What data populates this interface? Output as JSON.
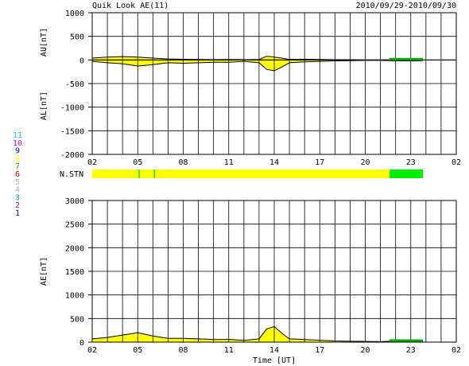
{
  "title_left": "Quik Look AE(11)",
  "title_right": "2010/09/29-2010/09/30",
  "xlabel": "Time [UT]",
  "x_ticks": [
    "02",
    "05",
    "08",
    "11",
    "14",
    "17",
    "20",
    "23",
    "02"
  ],
  "station_label": "N.STN",
  "station_numbers": [
    {
      "label": "11",
      "color": "#00d0d0"
    },
    {
      "label": "10",
      "color": "#e000e0"
    },
    {
      "label": "9",
      "color": "#0000c0"
    },
    {
      "label": "8",
      "color": "#ffff00"
    },
    {
      "label": "7",
      "color": "#00c000"
    },
    {
      "label": "6",
      "color": "#e00000"
    },
    {
      "label": "5",
      "color": "#b0b0b0"
    },
    {
      "label": "4",
      "color": "#b0b0b0"
    },
    {
      "label": "3",
      "color": "#00a0a0"
    },
    {
      "label": "2",
      "color": "#a000a0"
    },
    {
      "label": "1",
      "color": "#0000c0"
    }
  ],
  "colors": {
    "fill": "#ffff00",
    "line": "#000000",
    "green": "#00ee00",
    "ae_green": "#00aa00"
  },
  "chart_data": [
    {
      "type": "area",
      "name": "AU/AL",
      "ylabel_top": "AU[nT]",
      "ylabel_bottom": "AL[nT]",
      "ylim": [
        -2000,
        1000
      ],
      "y_ticks": [
        "1000",
        "500",
        "0",
        "-500",
        "-1000",
        "-1500",
        "-2000"
      ],
      "x_hours": [
        2,
        3,
        4,
        5,
        6,
        7,
        8,
        9,
        10,
        11,
        12,
        13,
        13.5,
        14,
        14.5,
        15,
        16,
        17,
        18,
        19,
        20,
        21,
        22,
        23,
        23.8
      ],
      "au": [
        40,
        60,
        70,
        60,
        40,
        20,
        15,
        10,
        5,
        10,
        5,
        10,
        80,
        60,
        40,
        10,
        15,
        10,
        5,
        5,
        0,
        0,
        5,
        5,
        5
      ],
      "al": [
        -30,
        -60,
        -80,
        -130,
        -100,
        -60,
        -70,
        -60,
        -50,
        -50,
        -30,
        -60,
        -200,
        -230,
        -150,
        -60,
        -40,
        -30,
        -20,
        -15,
        -10,
        -10,
        -20,
        -20,
        -15
      ]
    },
    {
      "type": "area",
      "name": "AE",
      "ylabel": "AE[nT]",
      "ylim": [
        0,
        3000
      ],
      "y_ticks": [
        "3000",
        "2500",
        "2000",
        "1500",
        "1000",
        "500",
        "0"
      ],
      "x_hours": [
        2,
        3,
        4,
        5,
        6,
        7,
        8,
        9,
        10,
        11,
        12,
        13,
        13.5,
        14,
        14.5,
        15,
        16,
        17,
        18,
        19,
        20,
        21,
        22,
        23,
        23.8
      ],
      "ae": [
        70,
        100,
        150,
        200,
        130,
        80,
        80,
        70,
        55,
        60,
        35,
        70,
        280,
        330,
        190,
        70,
        55,
        40,
        25,
        20,
        15,
        10,
        25,
        25,
        20
      ],
      "green_segment_hours": [
        21.6,
        23.8
      ]
    },
    {
      "type": "bar",
      "name": "N.STN",
      "segments": [
        {
          "from": 2,
          "to": 21.6,
          "color": "#ffff00"
        },
        {
          "from": 21.6,
          "to": 23.8,
          "color": "#00ee00"
        }
      ],
      "markers_hours": [
        5.1,
        6.1
      ]
    }
  ]
}
